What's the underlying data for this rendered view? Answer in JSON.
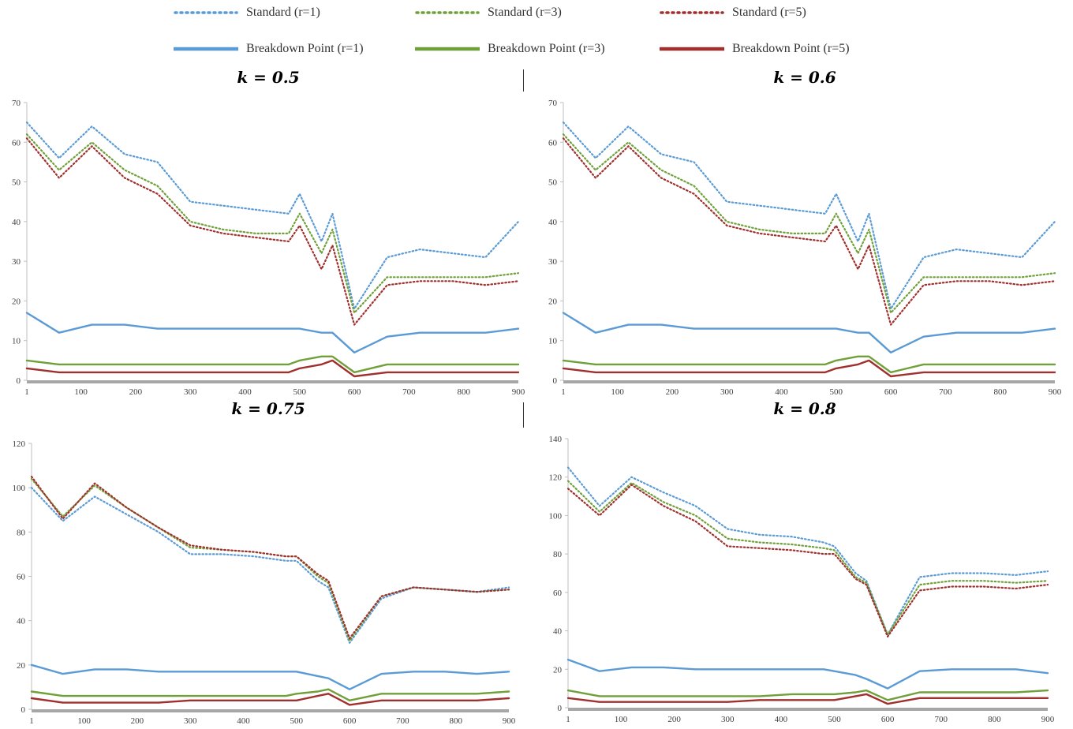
{
  "legend": [
    {
      "label": "Standard (r=1)",
      "color": "#5B9BD5",
      "style": "dotted"
    },
    {
      "label": "Standard (r=3)",
      "color": "#70A03A",
      "style": "dotted"
    },
    {
      "label": "Standard (r=5)",
      "color": "#A0302E",
      "style": "dotted"
    },
    {
      "label": "Breakdown Point (r=1)",
      "color": "#5B9BD5",
      "style": "solid"
    },
    {
      "label": "Breakdown Point (r=3)",
      "color": "#70A03A",
      "style": "solid"
    },
    {
      "label": "Breakdown Point (r=5)",
      "color": "#A0302E",
      "style": "solid"
    }
  ],
  "chart_data": [
    {
      "type": "line",
      "title": "k = 0.5",
      "xlim": [
        1,
        900
      ],
      "ylim": [
        0,
        70
      ],
      "xticks": [
        1,
        100,
        200,
        300,
        400,
        500,
        600,
        700,
        800,
        900
      ],
      "yticks": [
        0,
        10,
        20,
        30,
        40,
        50,
        60,
        70
      ],
      "x": [
        1,
        60,
        120,
        180,
        240,
        300,
        360,
        420,
        480,
        500,
        540,
        560,
        600,
        660,
        720,
        780,
        840,
        900
      ],
      "series": [
        {
          "name": "Standard (r=1)",
          "style": "dotted",
          "color": "#5B9BD5",
          "values": [
            65,
            56,
            64,
            57,
            55,
            45,
            44,
            43,
            42,
            47,
            35,
            42,
            18,
            31,
            33,
            32,
            31,
            40
          ]
        },
        {
          "name": "Standard (r=3)",
          "style": "dotted",
          "color": "#70A03A",
          "values": [
            62,
            53,
            60,
            53,
            49,
            40,
            38,
            37,
            37,
            42,
            32,
            38,
            17,
            26,
            26,
            26,
            26,
            27
          ]
        },
        {
          "name": "Standard (r=5)",
          "style": "dotted",
          "color": "#A0302E",
          "values": [
            61,
            51,
            59,
            51,
            47,
            39,
            37,
            36,
            35,
            39,
            28,
            34,
            14,
            24,
            25,
            25,
            24,
            25
          ]
        },
        {
          "name": "Breakdown Point (r=1)",
          "style": "solid",
          "color": "#5B9BD5",
          "values": [
            17,
            12,
            14,
            14,
            13,
            13,
            13,
            13,
            13,
            13,
            12,
            12,
            7,
            11,
            12,
            12,
            12,
            13
          ]
        },
        {
          "name": "Breakdown Point (r=3)",
          "style": "solid",
          "color": "#70A03A",
          "values": [
            5,
            4,
            4,
            4,
            4,
            4,
            4,
            4,
            4,
            5,
            6,
            6,
            2,
            4,
            4,
            4,
            4,
            4
          ]
        },
        {
          "name": "Breakdown Point (r=5)",
          "style": "solid",
          "color": "#A0302E",
          "values": [
            3,
            2,
            2,
            2,
            2,
            2,
            2,
            2,
            2,
            3,
            4,
            5,
            1,
            2,
            2,
            2,
            2,
            2
          ]
        }
      ]
    },
    {
      "type": "line",
      "title": "k = 0.6",
      "xlim": [
        1,
        900
      ],
      "ylim": [
        0,
        70
      ],
      "xticks": [
        1,
        100,
        200,
        300,
        400,
        500,
        600,
        700,
        800,
        900
      ],
      "yticks": [
        0,
        10,
        20,
        30,
        40,
        50,
        60,
        70
      ],
      "x": [
        1,
        60,
        120,
        180,
        240,
        300,
        360,
        420,
        480,
        500,
        540,
        560,
        600,
        660,
        720,
        780,
        840,
        900
      ],
      "series": [
        {
          "name": "Standard (r=1)",
          "style": "dotted",
          "color": "#5B9BD5",
          "values": [
            65,
            56,
            64,
            57,
            55,
            45,
            44,
            43,
            42,
            47,
            35,
            42,
            18,
            31,
            33,
            32,
            31,
            40
          ]
        },
        {
          "name": "Standard (r=3)",
          "style": "dotted",
          "color": "#70A03A",
          "values": [
            62,
            53,
            60,
            53,
            49,
            40,
            38,
            37,
            37,
            42,
            32,
            38,
            17,
            26,
            26,
            26,
            26,
            27
          ]
        },
        {
          "name": "Standard (r=5)",
          "style": "dotted",
          "color": "#A0302E",
          "values": [
            61,
            51,
            59,
            51,
            47,
            39,
            37,
            36,
            35,
            39,
            28,
            34,
            14,
            24,
            25,
            25,
            24,
            25
          ]
        },
        {
          "name": "Breakdown Point (r=1)",
          "style": "solid",
          "color": "#5B9BD5",
          "values": [
            17,
            12,
            14,
            14,
            13,
            13,
            13,
            13,
            13,
            13,
            12,
            12,
            7,
            11,
            12,
            12,
            12,
            13
          ]
        },
        {
          "name": "Breakdown Point (r=3)",
          "style": "solid",
          "color": "#70A03A",
          "values": [
            5,
            4,
            4,
            4,
            4,
            4,
            4,
            4,
            4,
            5,
            6,
            6,
            2,
            4,
            4,
            4,
            4,
            4
          ]
        },
        {
          "name": "Breakdown Point (r=5)",
          "style": "solid",
          "color": "#A0302E",
          "values": [
            3,
            2,
            2,
            2,
            2,
            2,
            2,
            2,
            2,
            3,
            4,
            5,
            1,
            2,
            2,
            2,
            2,
            2
          ]
        }
      ]
    },
    {
      "type": "line",
      "title": "k = 0.75",
      "xlim": [
        1,
        900
      ],
      "ylim": [
        0,
        120
      ],
      "xticks": [
        1,
        100,
        200,
        300,
        400,
        500,
        600,
        700,
        800,
        900
      ],
      "yticks": [
        0,
        20,
        40,
        60,
        80,
        100,
        120
      ],
      "x": [
        1,
        60,
        120,
        180,
        240,
        300,
        360,
        420,
        480,
        500,
        540,
        560,
        600,
        660,
        720,
        780,
        840,
        900
      ],
      "series": [
        {
          "name": "Standard (r=1)",
          "style": "dotted",
          "color": "#5B9BD5",
          "values": [
            100,
            85,
            96,
            88,
            80,
            70,
            70,
            69,
            67,
            67,
            58,
            55,
            30,
            50,
            55,
            54,
            53,
            55
          ]
        },
        {
          "name": "Standard (r=3)",
          "style": "dotted",
          "color": "#70A03A",
          "values": [
            104,
            87,
            101,
            91,
            82,
            73,
            72,
            71,
            69,
            69,
            60,
            57,
            31,
            51,
            55,
            54,
            53,
            54
          ]
        },
        {
          "name": "Standard (r=5)",
          "style": "dotted",
          "color": "#A0302E",
          "values": [
            105,
            86,
            102,
            91,
            82,
            74,
            72,
            71,
            69,
            69,
            61,
            58,
            32,
            51,
            55,
            54,
            53,
            54
          ]
        },
        {
          "name": "Breakdown Point (r=1)",
          "style": "solid",
          "color": "#5B9BD5",
          "values": [
            20,
            16,
            18,
            18,
            17,
            17,
            17,
            17,
            17,
            17,
            15,
            14,
            9,
            16,
            17,
            17,
            16,
            17
          ]
        },
        {
          "name": "Breakdown Point (r=3)",
          "style": "solid",
          "color": "#70A03A",
          "values": [
            8,
            6,
            6,
            6,
            6,
            6,
            6,
            6,
            6,
            7,
            8,
            9,
            4,
            7,
            7,
            7,
            7,
            8
          ]
        },
        {
          "name": "Breakdown Point (r=5)",
          "style": "solid",
          "color": "#A0302E",
          "values": [
            5,
            3,
            3,
            3,
            3,
            4,
            4,
            4,
            4,
            4,
            6,
            7,
            2,
            4,
            4,
            4,
            4,
            5
          ]
        }
      ]
    },
    {
      "type": "line",
      "title": "k = 0.8",
      "xlim": [
        1,
        900
      ],
      "ylim": [
        0,
        140
      ],
      "xticks": [
        1,
        100,
        200,
        300,
        400,
        500,
        600,
        700,
        800,
        900
      ],
      "yticks": [
        0,
        20,
        40,
        60,
        80,
        100,
        120,
        140
      ],
      "x": [
        1,
        60,
        120,
        180,
        240,
        300,
        360,
        420,
        480,
        500,
        540,
        560,
        600,
        660,
        720,
        780,
        840,
        900
      ],
      "series": [
        {
          "name": "Standard (r=1)",
          "style": "dotted",
          "color": "#5B9BD5",
          "values": [
            125,
            105,
            120,
            112,
            105,
            93,
            90,
            89,
            86,
            84,
            70,
            66,
            38,
            68,
            70,
            70,
            69,
            71
          ]
        },
        {
          "name": "Standard (r=3)",
          "style": "dotted",
          "color": "#70A03A",
          "values": [
            118,
            102,
            117,
            107,
            100,
            88,
            86,
            85,
            83,
            82,
            68,
            65,
            38,
            64,
            66,
            66,
            65,
            66
          ]
        },
        {
          "name": "Standard (r=5)",
          "style": "dotted",
          "color": "#A0302E",
          "values": [
            114,
            100,
            116,
            105,
            97,
            84,
            83,
            82,
            80,
            80,
            67,
            64,
            37,
            61,
            63,
            63,
            62,
            64
          ]
        },
        {
          "name": "Breakdown Point (r=1)",
          "style": "solid",
          "color": "#5B9BD5",
          "values": [
            25,
            19,
            21,
            21,
            20,
            20,
            20,
            20,
            20,
            19,
            17,
            15,
            10,
            19,
            20,
            20,
            20,
            18
          ]
        },
        {
          "name": "Breakdown Point (r=3)",
          "style": "solid",
          "color": "#70A03A",
          "values": [
            9,
            6,
            6,
            6,
            6,
            6,
            6,
            7,
            7,
            7,
            8,
            9,
            4,
            8,
            8,
            8,
            8,
            9
          ]
        },
        {
          "name": "Breakdown Point (r=5)",
          "style": "solid",
          "color": "#A0302E",
          "values": [
            5,
            3,
            3,
            3,
            3,
            3,
            4,
            4,
            4,
            4,
            6,
            7,
            2,
            5,
            5,
            5,
            5,
            5
          ]
        }
      ]
    }
  ]
}
